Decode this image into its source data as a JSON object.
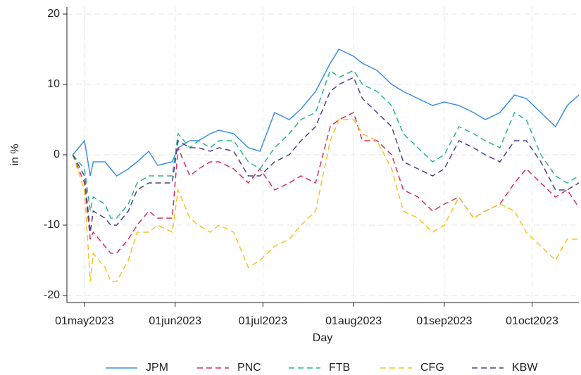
{
  "chart_data": {
    "type": "line",
    "xlabel": "Day",
    "ylabel": "in %",
    "x": [
      "2023-04-27",
      "2023-05-01",
      "2023-05-03",
      "2023-05-04",
      "2023-05-08",
      "2023-05-10",
      "2023-05-12",
      "2023-05-16",
      "2023-05-19",
      "2023-05-23",
      "2023-05-26",
      "2023-05-31",
      "2023-06-02",
      "2023-06-06",
      "2023-06-09",
      "2023-06-13",
      "2023-06-16",
      "2023-06-21",
      "2023-06-26",
      "2023-06-30",
      "2023-07-05",
      "2023-07-10",
      "2023-07-14",
      "2023-07-19",
      "2023-07-24",
      "2023-07-27",
      "2023-08-01",
      "2023-08-04",
      "2023-08-09",
      "2023-08-14",
      "2023-08-18",
      "2023-08-23",
      "2023-08-28",
      "2023-09-01",
      "2023-09-06",
      "2023-09-11",
      "2023-09-15",
      "2023-09-20",
      "2023-09-25",
      "2023-09-29",
      "2023-10-04",
      "2023-10-09",
      "2023-10-13",
      "2023-10-17"
    ],
    "series": [
      {
        "name": "JPM",
        "color": "#3b8fe8",
        "dash": "none",
        "values": [
          0,
          2,
          -3,
          -1,
          -1,
          -2,
          -3,
          -2,
          -1,
          0.5,
          -1.5,
          -1,
          1,
          2,
          2,
          3,
          3.5,
          3,
          1,
          0.5,
          6,
          5,
          6.5,
          9,
          13,
          15,
          14,
          13,
          12,
          10,
          9,
          8,
          7,
          7.5,
          7,
          6,
          5,
          6,
          8.5,
          8,
          6,
          4,
          7,
          8.5
        ]
      },
      {
        "name": "PNC",
        "color": "#d62e62",
        "dash": "dashed",
        "values": [
          0,
          -4,
          -12,
          -11,
          -13,
          -14,
          -14,
          -12,
          -10,
          -8,
          -9,
          -9,
          1,
          -3,
          -2,
          -1,
          -1,
          -2,
          -4,
          -2,
          -5,
          -4,
          -3,
          -4,
          4,
          5,
          6,
          2,
          2,
          0,
          -5,
          -6,
          -8,
          -7,
          -6,
          -9,
          -8,
          -7,
          -4,
          -2,
          -4,
          -6,
          -5,
          -7.5
        ]
      },
      {
        "name": "FTB",
        "color": "#2bb58a",
        "dash": "dashed",
        "values": [
          0,
          -2,
          -8,
          -6,
          -7,
          -9,
          -9,
          -7,
          -4,
          -3,
          -3,
          -3,
          3,
          1,
          2,
          1,
          2,
          2,
          -1,
          -2,
          1,
          3,
          5,
          6,
          12,
          11,
          12,
          10,
          9,
          7,
          3,
          1,
          -1,
          0,
          4,
          3,
          2,
          1,
          6,
          5,
          0,
          -3,
          -4,
          -3
        ]
      },
      {
        "name": "CFG",
        "color": "#f5c518",
        "dash": "dashed",
        "values": [
          0,
          -5,
          -18,
          -14,
          -16,
          -18,
          -18,
          -15,
          -11,
          -11,
          -10,
          -11,
          -5,
          -9,
          -10,
          -11,
          -10,
          -11,
          -16,
          -15,
          -13,
          -12,
          -10,
          -8,
          2,
          5,
          5,
          3,
          2,
          -2,
          -8,
          -9,
          -11,
          -10,
          -6,
          -9,
          -8,
          -7,
          -8,
          -11,
          -13,
          -15,
          -12,
          -12
        ]
      },
      {
        "name": "KBW",
        "color": "#4b3f8f",
        "dash": "dashed",
        "values": [
          0,
          -3,
          -11,
          -8,
          -9,
          -10,
          -10,
          -8,
          -5,
          -4,
          -4,
          -4,
          2,
          1,
          1,
          0.5,
          1,
          0.5,
          -3,
          -3,
          -1,
          0,
          2,
          4,
          9,
          10,
          11,
          8,
          6,
          4,
          -1,
          -2,
          -3,
          -2,
          2,
          1,
          0,
          -1,
          2,
          2,
          -1,
          -5,
          -5,
          -4
        ]
      }
    ],
    "xlim": [
      "2023-04-25",
      "2023-10-17"
    ],
    "xticks": [
      {
        "value": "2023-05-01",
        "label": "01may2023"
      },
      {
        "value": "2023-06-01",
        "label": "01jun2023"
      },
      {
        "value": "2023-07-01",
        "label": "01jul2023"
      },
      {
        "value": "2023-08-01",
        "label": "01aug2023"
      },
      {
        "value": "2023-09-01",
        "label": "01sep2023"
      },
      {
        "value": "2023-10-01",
        "label": "01oct2023"
      }
    ],
    "ylim": [
      -21,
      21
    ],
    "yticks": [
      -20,
      -10,
      0,
      10,
      20
    ],
    "grid": true,
    "legend": "bottom"
  }
}
